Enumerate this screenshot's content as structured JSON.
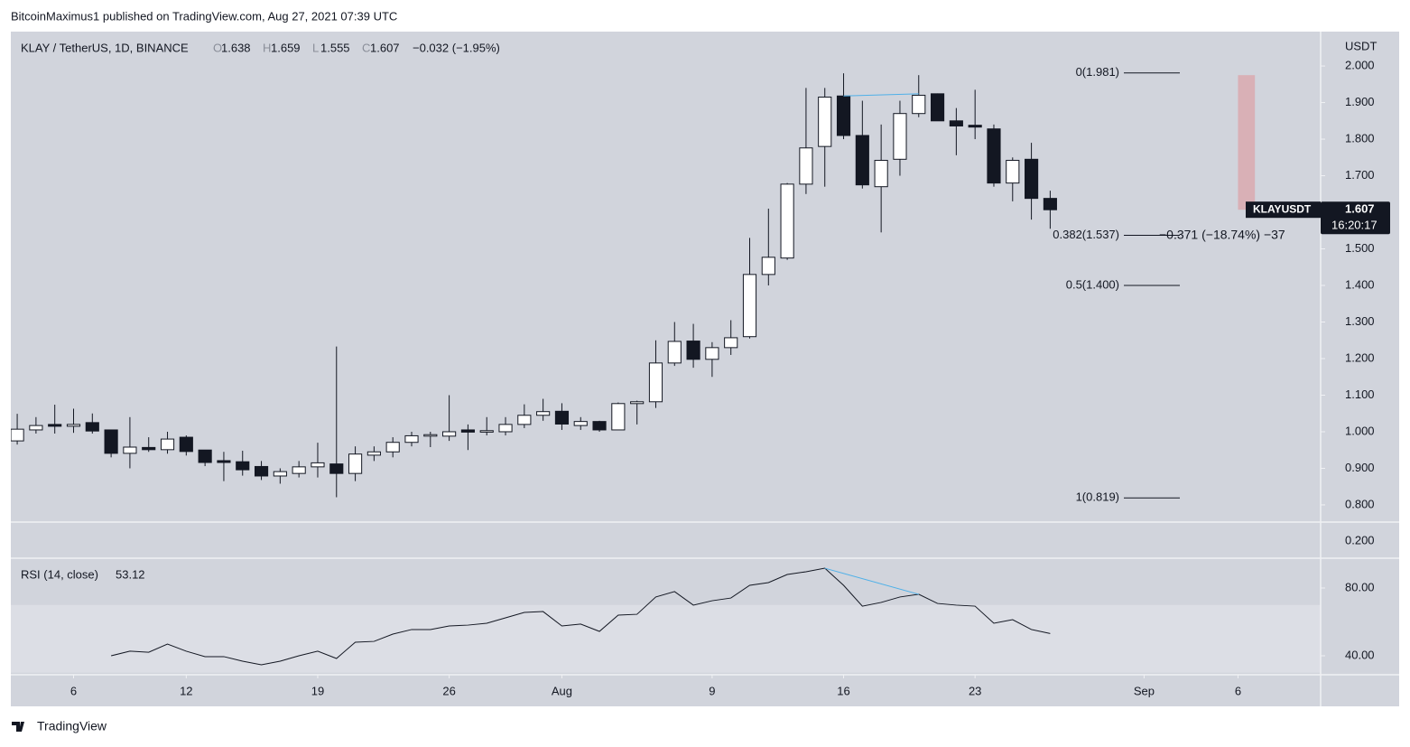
{
  "header": "BitcoinMaximus1 published on TradingView.com, Aug 27, 2021 07:39 UTC",
  "footer": "TradingView",
  "chart_data": {
    "type": "candlestick",
    "legend": {
      "symbol": "KLAY / TetherUS, 1D, BINANCE",
      "fields": [
        {
          "key": "O",
          "value": 1.638
        },
        {
          "key": "H",
          "value": 1.659
        },
        {
          "key": "L",
          "value": 1.555
        },
        {
          "key": "C",
          "value": 1.607
        }
      ],
      "change_label": "−0.032 (−1.95%)"
    },
    "axis_unit": "USDT",
    "categories": [
      "Jul 3",
      "Jul 4",
      "Jul 5",
      "Jul 6",
      "Jul 7",
      "Jul 8",
      "Jul 9",
      "Jul 10",
      "Jul 11",
      "Jul 12",
      "Jul 13",
      "Jul 14",
      "Jul 15",
      "Jul 16",
      "Jul 17",
      "Jul 18",
      "Jul 19",
      "Jul 20",
      "Jul 21",
      "Jul 22",
      "Jul 23",
      "Jul 24",
      "Jul 25",
      "Jul 26",
      "Jul 27",
      "Jul 28",
      "Jul 29",
      "Jul 30",
      "Jul 31",
      "Aug 1",
      "Aug 2",
      "Aug 3",
      "Aug 4",
      "Aug 5",
      "Aug 6",
      "Aug 7",
      "Aug 8",
      "Aug 9",
      "Aug 10",
      "Aug 11",
      "Aug 12",
      "Aug 13",
      "Aug 14",
      "Aug 15",
      "Aug 16",
      "Aug 17",
      "Aug 18",
      "Aug 19",
      "Aug 20",
      "Aug 21",
      "Aug 22",
      "Aug 23",
      "Aug 24",
      "Aug 25",
      "Aug 26",
      "Aug 27"
    ],
    "open": [
      0.975,
      1.005,
      1.02,
      1.015,
      1.025,
      1.005,
      0.941,
      0.957,
      0.951,
      0.985,
      0.95,
      0.921,
      0.918,
      0.905,
      0.879,
      0.886,
      0.904,
      0.912,
      0.886,
      0.936,
      0.945,
      0.971,
      0.988,
      0.988,
      1.005,
      0.999,
      1.0,
      1.02,
      1.045,
      1.056,
      1.017,
      1.028,
      1.005,
      1.077,
      1.082,
      1.188,
      1.248,
      1.198,
      1.23,
      1.26,
      1.43,
      1.475,
      1.677,
      1.78,
      1.918,
      1.81,
      1.67,
      1.745,
      1.87,
      1.924,
      1.85,
      1.838,
      1.828,
      1.68,
      1.745,
      1.638
    ],
    "high": [
      1.049,
      1.04,
      1.074,
      1.063,
      1.05,
      1.005,
      1.04,
      0.985,
      1.0,
      0.99,
      0.95,
      0.945,
      0.948,
      0.92,
      0.9,
      0.92,
      0.97,
      1.233,
      0.96,
      0.96,
      0.985,
      1.0,
      1.0,
      1.1,
      1.02,
      1.04,
      1.04,
      1.075,
      1.09,
      1.078,
      1.04,
      1.03,
      1.08,
      1.085,
      1.25,
      1.3,
      1.295,
      1.245,
      1.305,
      1.53,
      1.61,
      1.68,
      1.94,
      1.94,
      1.98,
      1.905,
      1.84,
      1.905,
      1.975,
      1.925,
      1.885,
      1.935,
      1.84,
      1.75,
      1.79,
      1.659
    ],
    "low": [
      0.965,
      0.995,
      0.995,
      0.997,
      0.995,
      0.93,
      0.9,
      0.945,
      0.94,
      0.935,
      0.906,
      0.865,
      0.88,
      0.868,
      0.858,
      0.875,
      0.875,
      0.821,
      0.865,
      0.92,
      0.93,
      0.96,
      0.958,
      0.975,
      0.95,
      0.99,
      0.99,
      1.01,
      1.03,
      1.005,
      1.005,
      1.0,
      1.005,
      1.02,
      1.065,
      1.18,
      1.175,
      1.15,
      1.21,
      1.255,
      1.4,
      1.47,
      1.65,
      1.67,
      1.8,
      1.665,
      1.545,
      1.7,
      1.86,
      1.85,
      1.756,
      1.8,
      1.67,
      1.63,
      1.58,
      1.555
    ],
    "close": [
      1.007,
      1.017,
      1.015,
      1.02,
      1.002,
      0.941,
      0.958,
      0.951,
      0.98,
      0.946,
      0.916,
      0.916,
      0.896,
      0.879,
      0.891,
      0.904,
      0.915,
      0.886,
      0.939,
      0.945,
      0.971,
      0.989,
      0.992,
      1.0,
      0.999,
      1.003,
      1.02,
      1.045,
      1.055,
      1.021,
      1.028,
      1.005,
      1.077,
      1.082,
      1.188,
      1.247,
      1.198,
      1.23,
      1.257,
      1.43,
      1.477,
      1.677,
      1.776,
      1.915,
      1.81,
      1.675,
      1.742,
      1.87,
      1.92,
      1.85,
      1.836,
      1.833,
      1.68,
      1.742,
      1.638,
      1.607
    ],
    "up_color": "#ffffff",
    "down_color": "#131722",
    "xlim": [
      -0.34,
      69.4
    ],
    "xticks": [
      {
        "value": 3,
        "label": "6"
      },
      {
        "value": 9,
        "label": "12"
      },
      {
        "value": 16,
        "label": "19"
      },
      {
        "value": 23,
        "label": "26"
      },
      {
        "value": 29,
        "label": "Aug"
      },
      {
        "value": 37,
        "label": "9"
      },
      {
        "value": 44,
        "label": "16"
      },
      {
        "value": 51,
        "label": "23"
      },
      {
        "value": 60,
        "label": "Sep"
      },
      {
        "value": 65,
        "label": "6"
      }
    ],
    "ylim": [
      0.753,
      2.094
    ],
    "yticks": [
      {
        "value": 0.8,
        "label": "0.800"
      },
      {
        "value": 0.9,
        "label": "0.900"
      },
      {
        "value": 1.0,
        "label": "1.000"
      },
      {
        "value": 1.1,
        "label": "1.100"
      },
      {
        "value": 1.2,
        "label": "1.200"
      },
      {
        "value": 1.3,
        "label": "1.300"
      },
      {
        "value": 1.4,
        "label": "1.400"
      },
      {
        "value": 1.5,
        "label": "1.500"
      },
      {
        "value": 1.6,
        "label": "1.600"
      },
      {
        "value": 1.7,
        "label": "1.700"
      },
      {
        "value": 1.8,
        "label": "1.800"
      },
      {
        "value": 1.9,
        "label": "1.900"
      },
      {
        "value": 2.0,
        "label": "2.000"
      }
    ],
    "pane2_ticks": [
      {
        "value": 0.2,
        "label": "0.200"
      }
    ],
    "fib_levels": [
      {
        "label": "0(1.981)",
        "price": 1.981
      },
      {
        "label": "0.382(1.537)",
        "price": 1.537
      },
      {
        "label": "0.5(1.400)",
        "price": 1.4
      },
      {
        "label": "1(0.819)",
        "price": 0.819
      }
    ],
    "measure": {
      "from": 1.975,
      "to": 1.607,
      "label": "−0.371 (−18.74%) −37",
      "color": "#d9b0b6"
    },
    "price_tag": {
      "symbol": "KLAYUSDT",
      "price": 1.607,
      "countdown": "16:20:17"
    },
    "trendline": {
      "from": 44,
      "to": 48,
      "values": [
        1.918,
        1.924
      ],
      "color": "#4fb0e8"
    },
    "rsi": {
      "label": "RSI (14, close)",
      "current": 53.12,
      "values": [
        null,
        null,
        null,
        null,
        null,
        40,
        42.7,
        42.1,
        46.9,
        42.7,
        39.5,
        39.5,
        36.8,
        34.7,
        36.8,
        40,
        42.7,
        38.4,
        48,
        48.5,
        52.8,
        55.5,
        55.5,
        57.6,
        58.1,
        59.2,
        62.4,
        65.6,
        66.1,
        57.6,
        58.7,
        54.4,
        64,
        64.5,
        74.7,
        77.9,
        69.9,
        72.5,
        74.1,
        81.6,
        83.2,
        88,
        89.6,
        91.7,
        81.6,
        69.3,
        71.5,
        74.7,
        76.3,
        70.9,
        69.9,
        69.3,
        59.2,
        61.3,
        55.5,
        53.12
      ],
      "color": "#131722",
      "ylim": [
        28.8,
        97.6
      ],
      "yticks": [
        {
          "value": 40,
          "label": "40.00"
        },
        {
          "value": 80,
          "label": "80.00"
        }
      ],
      "band": [
        30,
        70
      ],
      "trendline": {
        "from": 43,
        "to": 48,
        "values": [
          91.7,
          76.3
        ],
        "color": "#4fb0e8"
      }
    }
  }
}
